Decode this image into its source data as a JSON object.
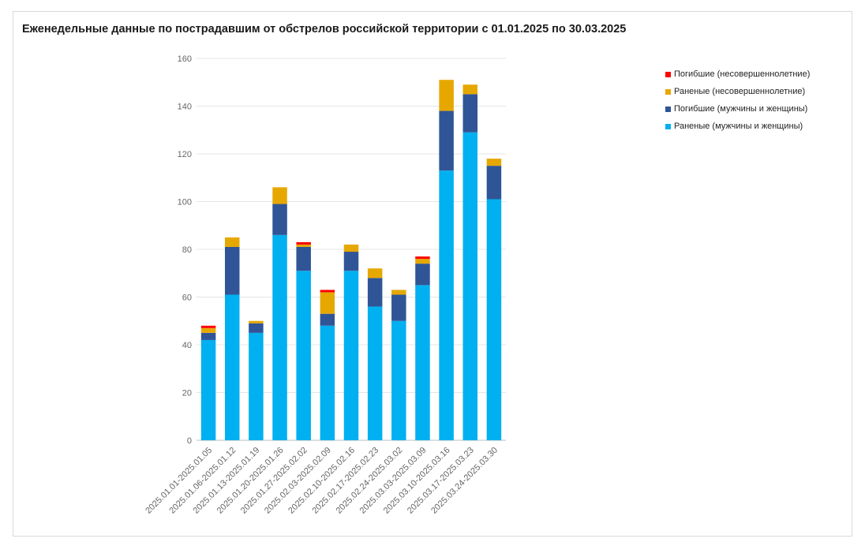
{
  "chart_data": {
    "type": "bar",
    "stacked": true,
    "title": "Еженедельные данные по пострадавшим от обстрелов российской территории с 01.01.2025 по 30.03.2025",
    "xlabel": "",
    "ylabel": "",
    "ylim": [
      0,
      160
    ],
    "yticks": [
      0,
      20,
      40,
      60,
      80,
      100,
      120,
      140,
      160
    ],
    "grid": true,
    "legend_position": "top-right",
    "categories": [
      "2025.01.01-2025.01.05",
      "2025.01.06-2025.01.12",
      "2025.01.13-2025.01.19",
      "2025.01.20-2025.01.26",
      "2025.01.27-2025.02.02",
      "2025.02.03-2025.02.09",
      "2025.02.10-2025.02.16",
      "2025.02.17-2025.02.23",
      "2025.02.24-2025.03.02",
      "2025.03.03-2025.03.09",
      "2025.03.10-2025.03.16",
      "2025.03.17-2025.03.23",
      "2025.03.24-2025.03.30"
    ],
    "series": [
      {
        "name": "Раненые (мужчины и женщины)",
        "color": "#00b0f0",
        "values": [
          42,
          61,
          45,
          86,
          71,
          48,
          71,
          56,
          50,
          65,
          113,
          129,
          101
        ]
      },
      {
        "name": "Погибшие (мужчины и женщины)",
        "color": "#2f5597",
        "values": [
          3,
          20,
          4,
          13,
          10,
          5,
          8,
          12,
          11,
          9,
          25,
          16,
          14
        ]
      },
      {
        "name": "Раненые (несовершеннолетние)",
        "color": "#e6a800",
        "values": [
          2,
          4,
          1,
          7,
          1,
          9,
          3,
          4,
          2,
          2,
          13,
          4,
          3
        ]
      },
      {
        "name": "Погибшие (несовершеннолетние)",
        "color": "#ff0000",
        "values": [
          1,
          0,
          0,
          0,
          1,
          1,
          0,
          0,
          0,
          1,
          0,
          0,
          0
        ]
      }
    ],
    "legend_order": [
      "Погибшие (несовершеннолетние)",
      "Раненые (несовершеннолетние)",
      "Погибшие (мужчины и женщины)",
      "Раненые (мужчины и женщины)"
    ]
  }
}
